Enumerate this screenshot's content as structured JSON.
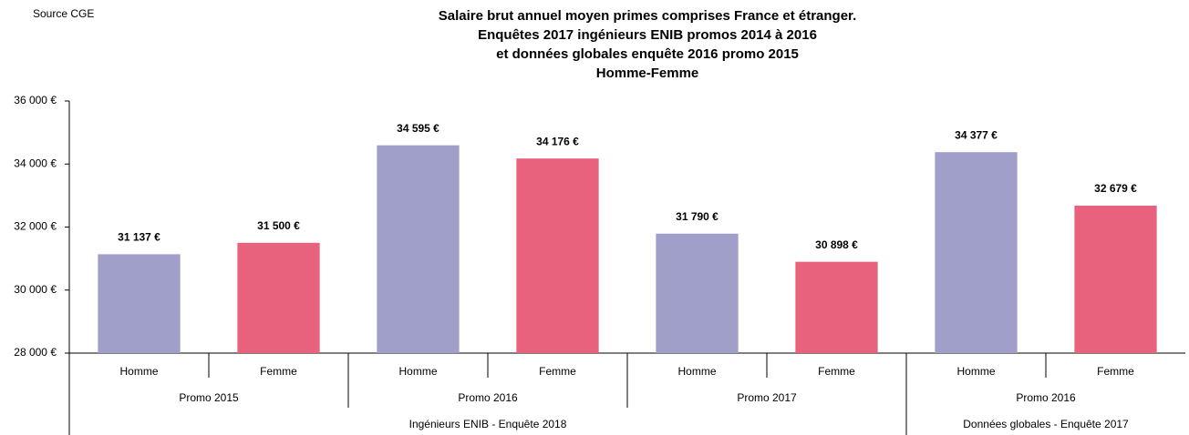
{
  "chart_data": {
    "type": "bar",
    "source": "Source CGE",
    "title": [
      "Salaire brut annuel moyen primes comprises France et étranger.",
      "Enquêtes 2017 ingénieurs ENIB promos 2014 à 2016",
      "et  données globales enquête 2016 promo 2015",
      "Homme-Femme"
    ],
    "categories": [
      "Homme",
      "Femme",
      "Homme",
      "Femme",
      "Homme",
      "Femme",
      "Homme",
      "Femme"
    ],
    "groups": [
      "Promo 2015",
      "Promo 2016",
      "Promo 2017",
      "Promo 2016"
    ],
    "super_groups": [
      "Ingénieurs ENIB - Enquête 2018",
      "Données globales - Enquête 2017"
    ],
    "values": [
      31137,
      31500,
      34595,
      34176,
      31790,
      30898,
      34377,
      32679
    ],
    "value_labels": [
      "31 137 €",
      "31 500 €",
      "34 595 €",
      "34 176 €",
      "31 790 €",
      "30 898 €",
      "34 377 €",
      "32 679 €"
    ],
    "colors": [
      "#a09fca",
      "#e8627d",
      "#a09fca",
      "#e8627d",
      "#a09fca",
      "#e8627d",
      "#a09fca",
      "#e8627d"
    ],
    "ylim": [
      28000,
      36000
    ],
    "yticks": [
      {
        "value": 28000,
        "label": "28 000 €"
      },
      {
        "value": 30000,
        "label": "30 000 €"
      },
      {
        "value": 32000,
        "label": "32 000 €"
      },
      {
        "value": 34000,
        "label": "34 000 €"
      },
      {
        "value": 36000,
        "label": "36 000 €"
      }
    ],
    "grid": false
  }
}
